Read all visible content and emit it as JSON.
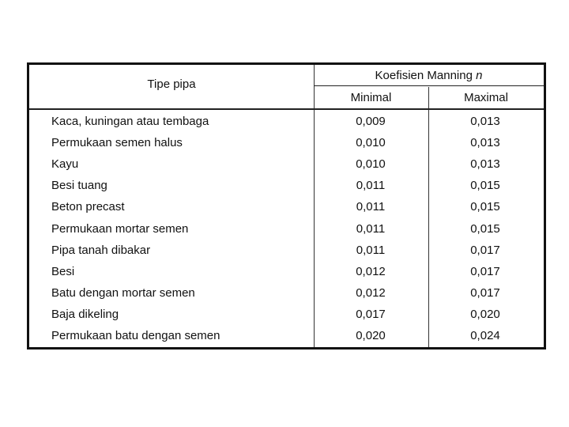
{
  "header": {
    "type_label": "Tipe pipa",
    "group_label": "Koefisien Manning",
    "group_symbol": "n",
    "min_label": "Minimal",
    "max_label": "Maximal"
  },
  "rows": [
    {
      "type": "Kaca, kuningan atau tembaga",
      "min": "0,009",
      "max": "0,013"
    },
    {
      "type": "Permukaan semen halus",
      "min": "0,010",
      "max": "0,013"
    },
    {
      "type": "Kayu",
      "min": "0,010",
      "max": "0,013"
    },
    {
      "type": "Besi tuang",
      "min": "0,011",
      "max": "0,015"
    },
    {
      "type": "Beton precast",
      "min": "0,011",
      "max": "0,015"
    },
    {
      "type": "Permukaan mortar semen",
      "min": "0,011",
      "max": "0,015"
    },
    {
      "type": "Pipa tanah dibakar",
      "min": "0,011",
      "max": "0,017"
    },
    {
      "type": "Besi",
      "min": "0,012",
      "max": "0,017"
    },
    {
      "type": "Batu dengan mortar semen",
      "min": "0,012",
      "max": "0,017"
    },
    {
      "type": "Baja dikeling",
      "min": "0,017",
      "max": "0,020"
    },
    {
      "type": "Permukaan batu dengan semen",
      "min": "0,020",
      "max": "0,024"
    }
  ]
}
